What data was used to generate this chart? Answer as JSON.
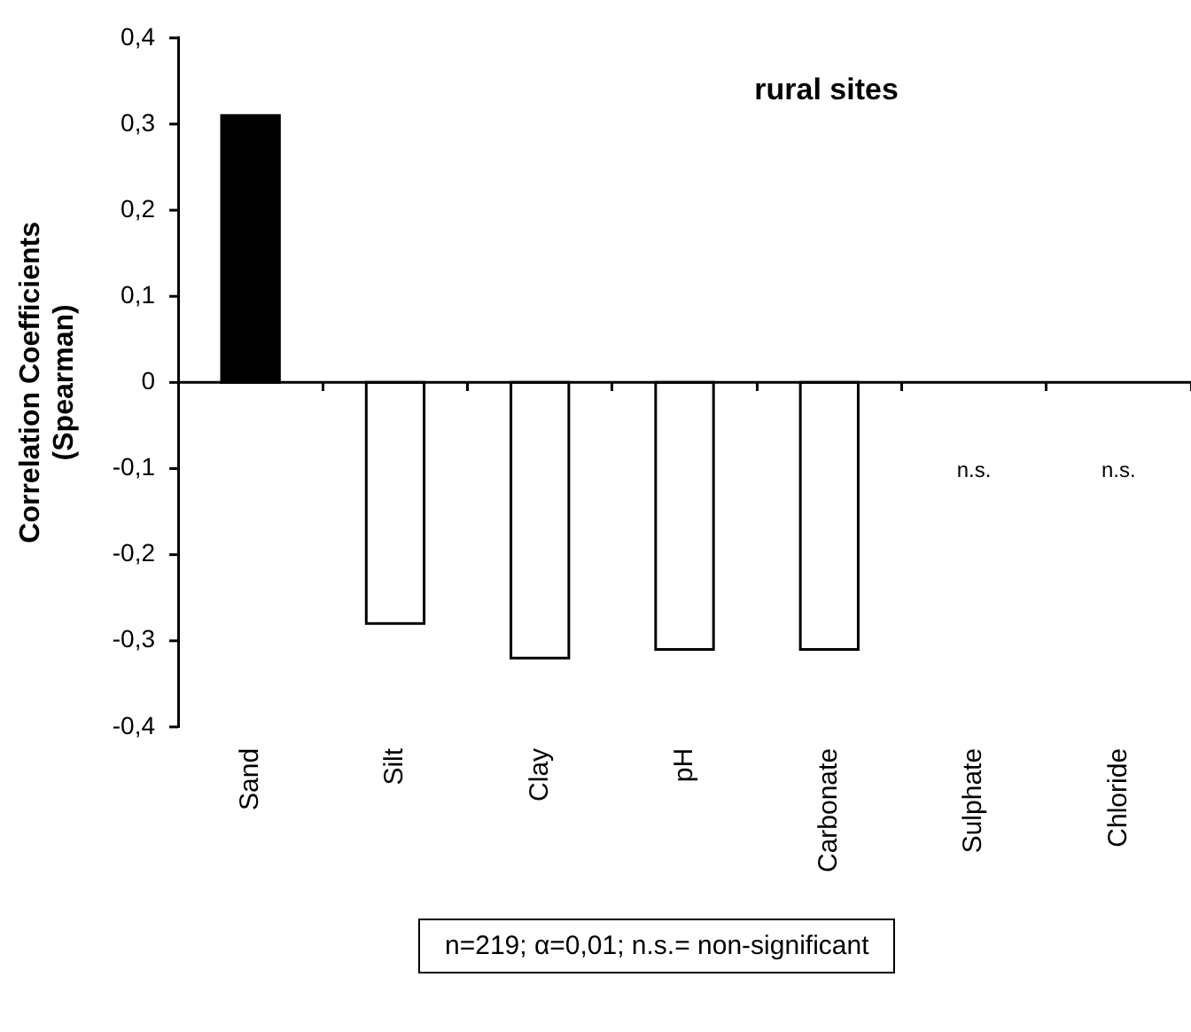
{
  "chart_data": {
    "type": "bar",
    "title": "rural sites",
    "ylabel": "Correlation Coefficients\n(Spearman)",
    "categories": [
      "Sand",
      "Silt",
      "Clay",
      "pH",
      "Carbonate",
      "Sulphate",
      "Chloride"
    ],
    "values": [
      0.31,
      -0.28,
      -0.32,
      -0.31,
      -0.31,
      null,
      null
    ],
    "colors": [
      "#000000",
      "#ffffff",
      "#ffffff",
      "#ffffff",
      "#ffffff",
      "#ffffff",
      "#ffffff"
    ],
    "ylim": [
      -0.4,
      0.4
    ],
    "yticks": [
      {
        "value": 0.4,
        "label": "0,4"
      },
      {
        "value": 0.3,
        "label": "0,3"
      },
      {
        "value": 0.2,
        "label": "0,2"
      },
      {
        "value": 0.1,
        "label": "0,1"
      },
      0,
      {
        "value": -0.1,
        "label": "-0,1"
      },
      {
        "value": -0.2,
        "label": "-0,2"
      },
      {
        "value": -0.3,
        "label": "-0,3"
      },
      {
        "value": -0.4,
        "label": "-0,4"
      }
    ],
    "grid": false,
    "legend": false,
    "ref_lines": [
      {
        "axis": "y",
        "value": 0,
        "color": "#000000"
      }
    ],
    "annotations": [
      "n.s.",
      "n.s.",
      "n=219; α=0,01; n.s.= non-significant"
    ]
  }
}
